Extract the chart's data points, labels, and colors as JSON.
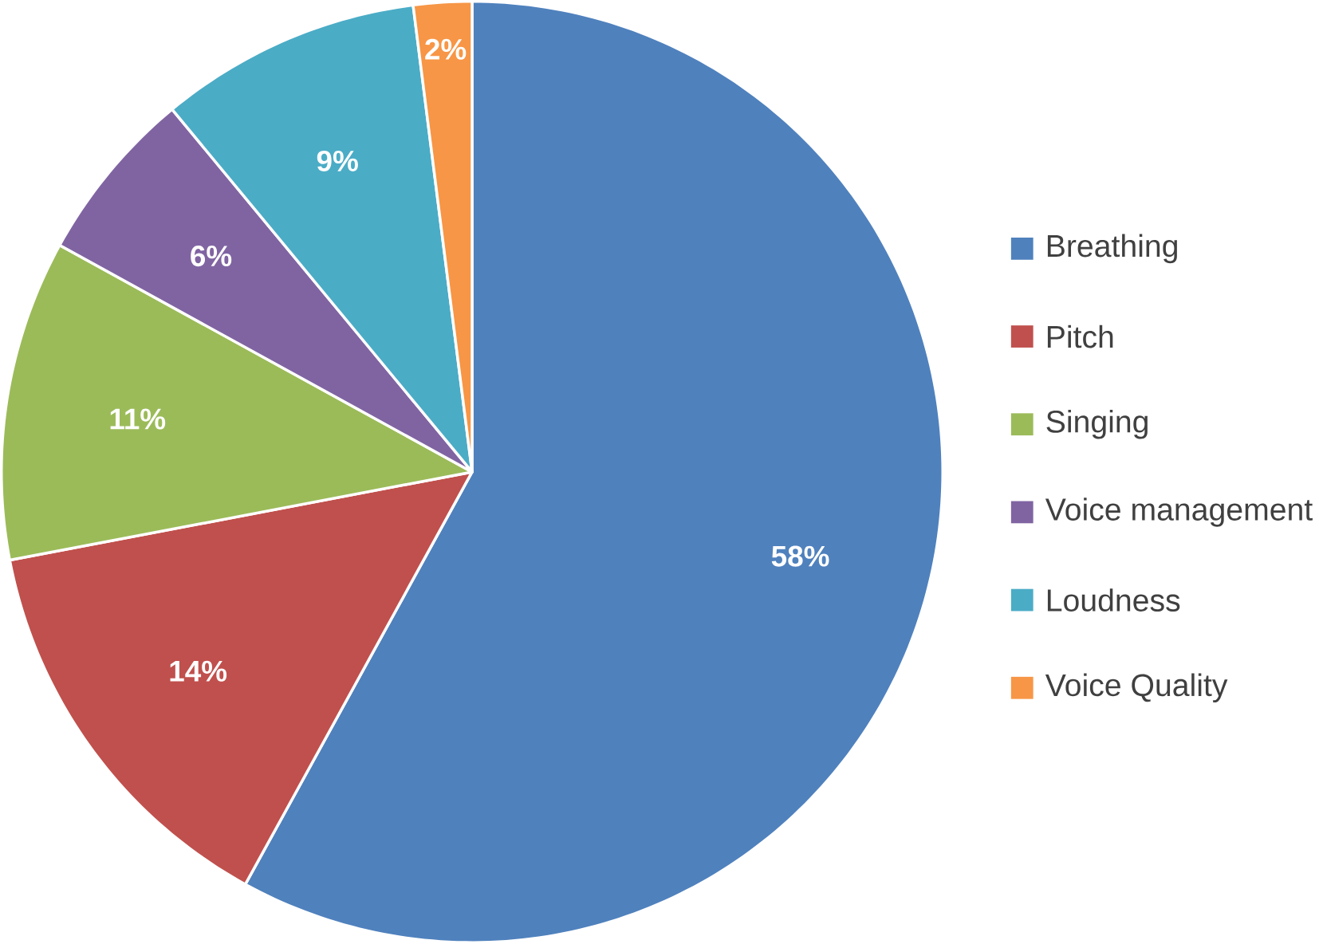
{
  "chart_data": {
    "type": "pie",
    "categories": [
      "Breathing",
      "Pitch",
      "Singing",
      "Voice management",
      "Loudness",
      "Voice Quality"
    ],
    "values": [
      58,
      14,
      11,
      6,
      9,
      2
    ],
    "colors": [
      "#4f81bd",
      "#c0504d",
      "#9bbb59",
      "#8064a2",
      "#4bacc6",
      "#f79646"
    ],
    "value_labels": [
      "58%",
      "14%",
      "11%",
      "6%",
      "9%",
      "2%"
    ],
    "legend": "right"
  }
}
